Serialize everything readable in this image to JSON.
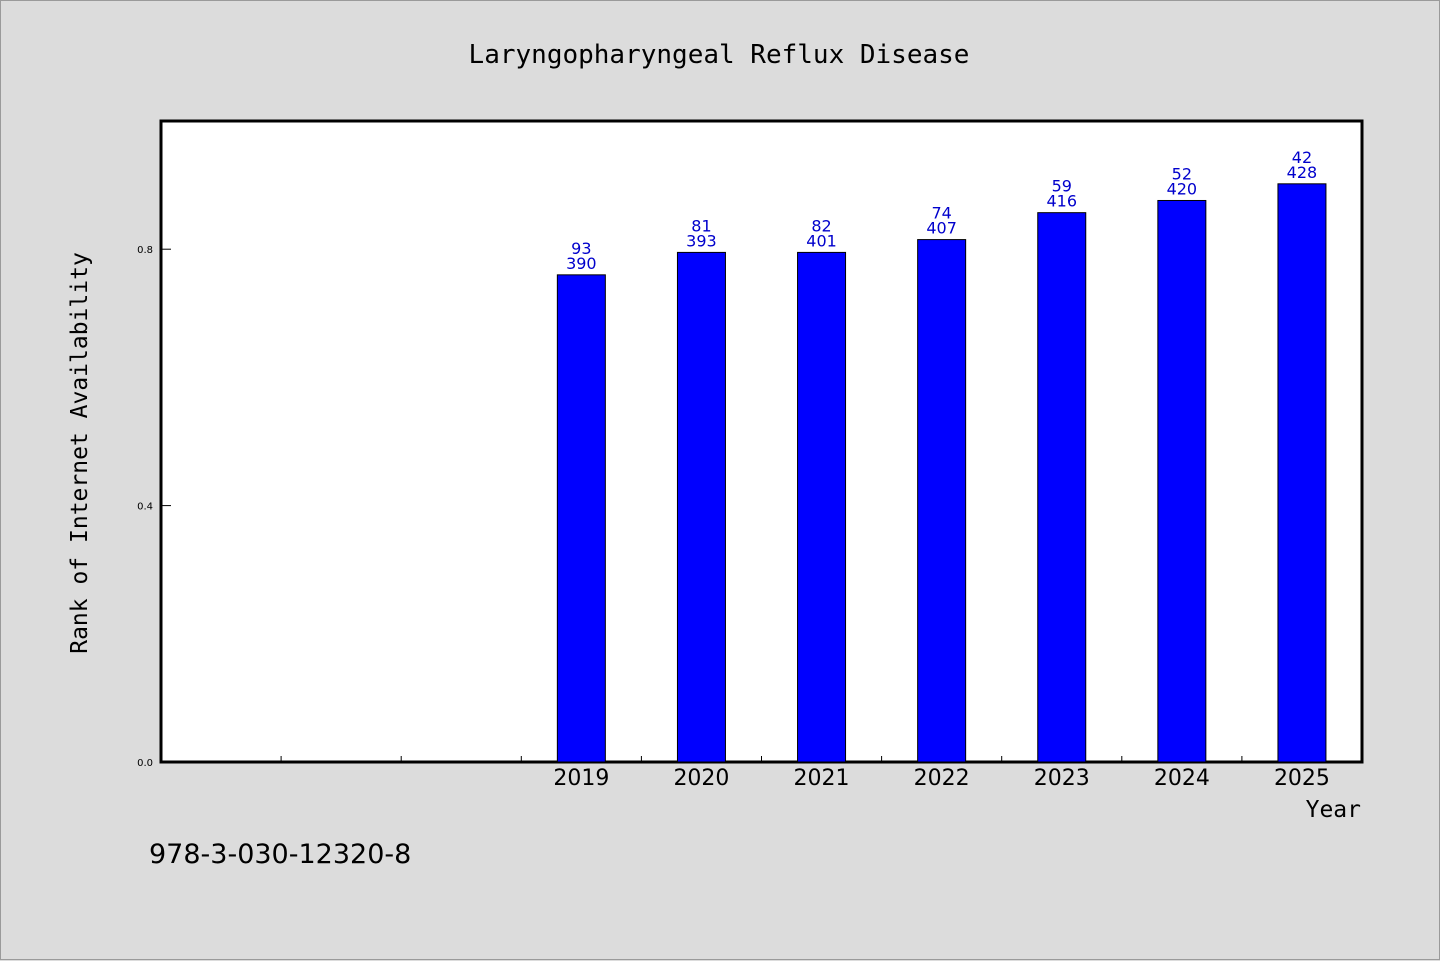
{
  "chart_data": {
    "type": "bar",
    "title": "Laryngopharyngeal Reflux Disease",
    "xlabel": "Year",
    "ylabel": "Rank of Internet Availability",
    "categories": [
      "",
      "",
      "",
      "2019",
      "2020",
      "2021",
      "2022",
      "2023",
      "2024",
      "2025"
    ],
    "values": [
      null,
      null,
      null,
      0.76,
      0.795,
      0.795,
      0.815,
      0.857,
      0.876,
      0.902
    ],
    "labels_top": [
      "",
      "",
      "",
      "93",
      "81",
      "82",
      "74",
      "59",
      "52",
      "42"
    ],
    "labels_bottom": [
      "",
      "",
      "",
      "390",
      "393",
      "401",
      "407",
      "416",
      "420",
      "428"
    ],
    "yticks": [
      "0.0",
      "0.4",
      "0.8"
    ],
    "ytick_values": [
      0.0,
      0.4,
      0.8
    ],
    "ylim": [
      0.0,
      1.0
    ],
    "grid": false,
    "bar_color": "#0000ff",
    "label_color": "#0000cc"
  },
  "footer": {
    "text": "978-3-030-12320-8"
  }
}
